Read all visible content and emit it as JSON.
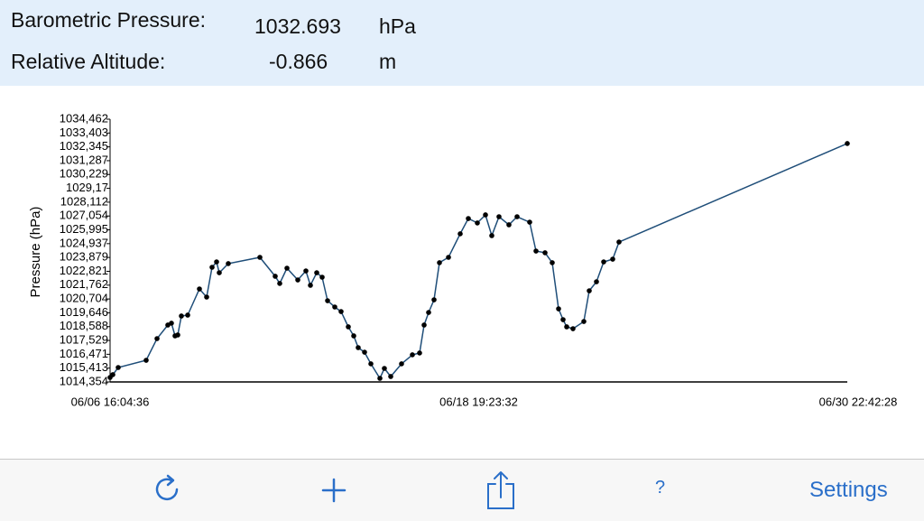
{
  "header": {
    "rows": [
      {
        "label": "Barometric Pressure:",
        "value": "1032.693",
        "unit": "hPa"
      },
      {
        "label": "Relative Altitude:",
        "value": "-0.866",
        "unit": "m"
      }
    ]
  },
  "chart_data": {
    "type": "line",
    "y_label": "Pressure (hPa)",
    "x": [
      "06/06 16:04:00",
      "06/06 18:13:00",
      "06/06 22:30:00",
      "06/07 20:36:00",
      "06/08 05:10:00",
      "06/08 13:43:00",
      "06/08 16:34:00",
      "06/08 19:25:00",
      "06/08 21:34:00",
      "06/09 00:25:00",
      "06/09 05:25:00",
      "06/09 14:41:00",
      "06/09 20:23:00",
      "06/10 00:40:00",
      "06/10 04:14:00",
      "06/10 06:22:00",
      "06/10 13:30:00",
      "06/11 14:28:00",
      "06/12 02:35:00",
      "06/12 06:09:00",
      "06/12 11:52:00",
      "06/12 20:25:00",
      "06/13 02:50:00",
      "06/13 06:24:00",
      "06/13 11:23:00",
      "06/13 15:40:00",
      "06/13 19:57:00",
      "06/14 01:39:00",
      "06/14 06:38:00",
      "06/14 12:21:00",
      "06/14 16:38:00",
      "06/14 20:11:00",
      "06/15 01:11:00",
      "06/15 06:11:00",
      "06/15 13:19:00",
      "06/15 16:52:00",
      "06/15 21:52:00",
      "06/16 06:25:00",
      "06/16 14:59:00",
      "06/16 20:41:00",
      "06/17 00:15:00",
      "06/17 03:49:00",
      "06/17 08:06:00",
      "06/17 12:23:00",
      "06/17 19:31:00",
      "06/18 04:47:00",
      "06/18 11:12:00",
      "06/18 18:20:00",
      "06/19 00:45:00",
      "06/19 05:44:00",
      "06/19 11:26:00",
      "06/19 19:17:00",
      "06/20 01:43:00",
      "06/20 11:41:00",
      "06/20 16:41:00",
      "06/20 23:49:00",
      "06/21 05:31:00",
      "06/21 10:31:00",
      "06/21 14:05:00",
      "06/21 16:56:00",
      "06/21 21:55:00",
      "06/22 06:29:00",
      "06/22 10:46:00",
      "06/22 16:28:00",
      "06/22 22:10:00",
      "06/23 05:18:00",
      "06/23 10:17:00",
      "06/30 22:42:28"
    ],
    "values": [
      1014.7,
      1014.91,
      1015.46,
      1016.01,
      1017.67,
      1018.71,
      1018.85,
      1017.88,
      1017.95,
      1019.4,
      1019.47,
      1021.47,
      1020.85,
      1023.13,
      1023.54,
      1022.71,
      1023.41,
      1023.89,
      1022.44,
      1021.89,
      1023.06,
      1022.16,
      1022.85,
      1021.75,
      1022.71,
      1022.37,
      1020.57,
      1020.09,
      1019.74,
      1018.57,
      1017.88,
      1016.98,
      1016.63,
      1015.74,
      1014.63,
      1015.39,
      1014.77,
      1015.74,
      1016.43,
      1016.57,
      1018.71,
      1019.67,
      1020.64,
      1023.48,
      1023.89,
      1025.69,
      1026.86,
      1026.52,
      1027.14,
      1025.55,
      1027.0,
      1026.38,
      1027.0,
      1026.58,
      1024.37,
      1024.24,
      1023.48,
      1019.95,
      1019.12,
      1018.57,
      1018.43,
      1018.98,
      1021.33,
      1022.02,
      1023.54,
      1023.75,
      1025.06,
      1032.6
    ],
    "color": "#1f4e79",
    "marker_color": "#000000",
    "xlim": [
      "06/06 16:04:36",
      "06/30 22:42:28"
    ],
    "xticks": [
      "06/06 16:04:36",
      "06/18 19:23:32",
      "06/30 22:42:28"
    ],
    "ylim": [
      1014.354,
      1034.462
    ],
    "yticks": [
      {
        "value": 1014.354,
        "label": "1014,354"
      },
      {
        "value": 1015.413,
        "label": "1015,413"
      },
      {
        "value": 1016.471,
        "label": "1016,471"
      },
      {
        "value": 1017.529,
        "label": "1017,529"
      },
      {
        "value": 1018.588,
        "label": "1018,588"
      },
      {
        "value": 1019.646,
        "label": "1019,646"
      },
      {
        "value": 1020.704,
        "label": "1020,704"
      },
      {
        "value": 1021.762,
        "label": "1021,762"
      },
      {
        "value": 1022.821,
        "label": "1022,821"
      },
      {
        "value": 1023.879,
        "label": "1023,879"
      },
      {
        "value": 1024.937,
        "label": "1024,937"
      },
      {
        "value": 1025.995,
        "label": "1025,995"
      },
      {
        "value": 1027.054,
        "label": "1027,054"
      },
      {
        "value": 1028.112,
        "label": "1028,112"
      },
      {
        "value": 1029.17,
        "label": "1029,17"
      },
      {
        "value": 1030.229,
        "label": "1030,229"
      },
      {
        "value": 1031.287,
        "label": "1031,287"
      },
      {
        "value": 1032.345,
        "label": "1032,345"
      },
      {
        "value": 1033.403,
        "label": "1033,403"
      },
      {
        "value": 1034.462,
        "label": "1034,462"
      }
    ]
  },
  "toolbar": {
    "help": "?",
    "settings": "Settings"
  }
}
